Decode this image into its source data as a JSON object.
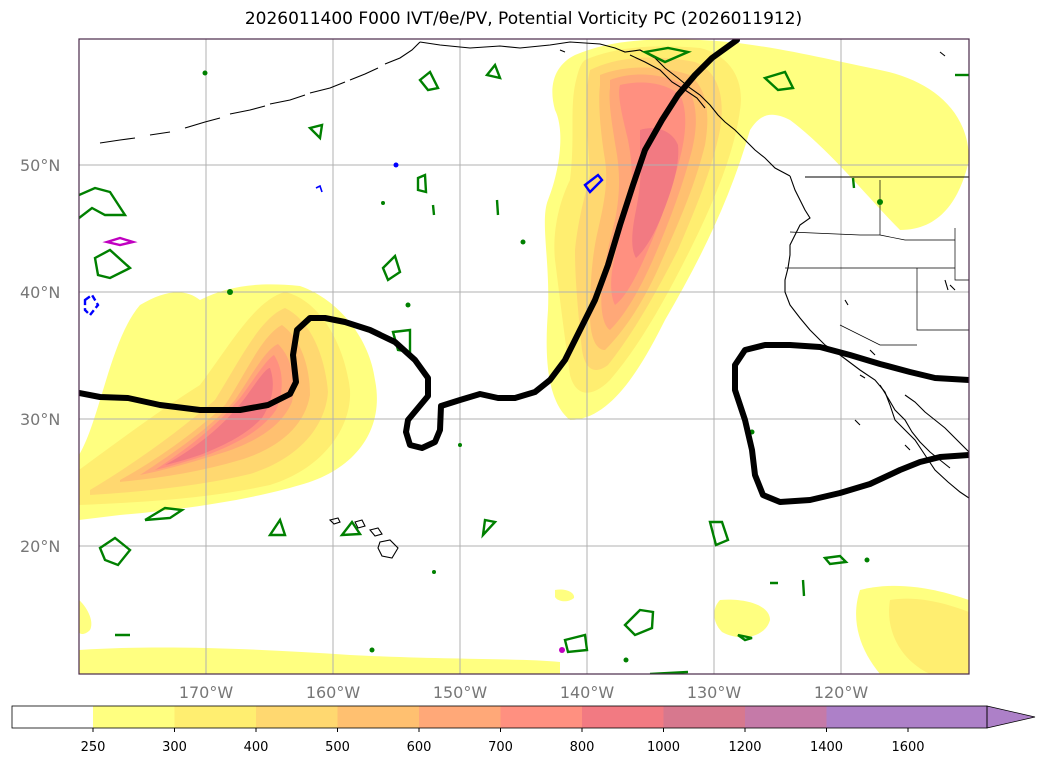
{
  "title": "2026011400 F000 IVT/θe/PV, Potential Vorticity PC (2026011912)",
  "map": {
    "lat_labels": [
      "50°N",
      "40°N",
      "30°N",
      "20°N"
    ],
    "lon_labels": [
      "170°W",
      "160°W",
      "150°W",
      "140°W",
      "130°W",
      "120°W"
    ],
    "lat_values": [
      50,
      40,
      30,
      20
    ],
    "lon_values": [
      -170,
      -160,
      -150,
      -140,
      -130,
      -120
    ],
    "extent": {
      "lon_min": -180,
      "lon_max": -110,
      "lat_min": 10,
      "lat_max": 60
    }
  },
  "colorbar": {
    "levels": [
      "250",
      "300",
      "400",
      "500",
      "600",
      "700",
      "800",
      "1000",
      "1200",
      "1400",
      "1600"
    ],
    "colors": [
      "#ffffff",
      "#ffff80",
      "#ffee70",
      "#ffd870",
      "#ffc070",
      "#ffa878",
      "#ff9080",
      "#f27a82",
      "#d7788e",
      "#c57aa8",
      "#ad80c8"
    ],
    "extend": "max"
  },
  "colors": {
    "pv_contour": "#000000",
    "positive_contour": "#008000",
    "negative_contour": "#0000ff",
    "magenta_contour": "#c000c0",
    "grid": "#b0b0b0"
  }
}
